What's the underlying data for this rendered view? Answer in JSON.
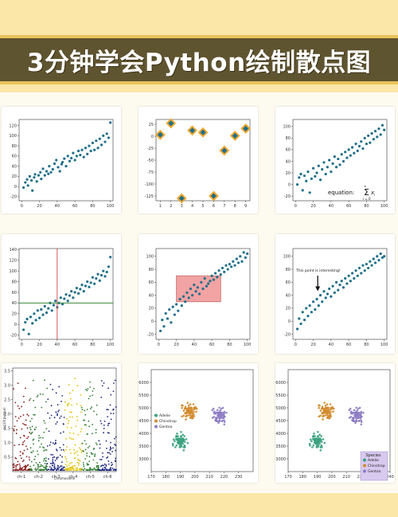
{
  "banner": {
    "title": "3分钟学会Python绘制散点图"
  },
  "chart_data": [
    {
      "type": "scatter",
      "title": "",
      "xlabel": "",
      "ylabel": "",
      "xlim": [
        -3,
        103
      ],
      "ylim": [
        -28,
        132
      ],
      "xticks": [
        "0",
        "20",
        "40",
        "60",
        "80",
        "100"
      ],
      "yticks": [
        "-20",
        "0",
        "20",
        "40",
        "60",
        "80",
        "100",
        "120"
      ],
      "color": "#1f6f8b",
      "x": [
        2,
        4,
        6,
        7,
        9,
        11,
        12,
        14,
        15,
        17,
        19,
        21,
        22,
        24,
        26,
        28,
        30,
        31,
        33,
        35,
        37,
        39,
        41,
        43,
        45,
        46,
        48,
        50,
        52,
        54,
        56,
        58,
        60,
        62,
        64,
        66,
        68,
        70,
        72,
        74,
        76,
        78,
        80,
        82,
        84,
        86,
        88,
        90,
        92,
        94,
        96,
        98,
        100
      ],
      "y": [
        -2,
        8,
        14,
        2,
        20,
        12,
        -8,
        18,
        24,
        10,
        22,
        28,
        15,
        35,
        22,
        30,
        25,
        40,
        28,
        34,
        45,
        52,
        38,
        30,
        44,
        48,
        55,
        40,
        60,
        50,
        56,
        66,
        52,
        60,
        70,
        62,
        72,
        58,
        76,
        64,
        80,
        70,
        86,
        72,
        90,
        76,
        94,
        82,
        100,
        88,
        104,
        96,
        126
      ]
    },
    {
      "type": "scatter",
      "title": "",
      "xlabel": "",
      "ylabel": "",
      "xlim": [
        0.6,
        9.4
      ],
      "ylim": [
        -135,
        35
      ],
      "xticks": [
        "1",
        "2",
        "3",
        "4",
        "5",
        "6",
        "7",
        "8",
        "9"
      ],
      "yticks": [
        "25",
        "0",
        "-25",
        "-50",
        "-75",
        "-100",
        "-125"
      ],
      "color": "#1f6f8b",
      "edge_color": "#f0a830",
      "marker": "diamond",
      "x": [
        1,
        2,
        3,
        4,
        5,
        6,
        7,
        8,
        9
      ],
      "y": [
        3,
        27,
        -130,
        12,
        8,
        -125,
        -30,
        1,
        16
      ]
    },
    {
      "type": "scatter",
      "title": "",
      "xlabel": "",
      "ylabel": "",
      "xlim": [
        -3,
        103
      ],
      "ylim": [
        -28,
        112
      ],
      "xticks": [
        "0",
        "20",
        "40",
        "60",
        "80",
        "100"
      ],
      "yticks": [
        "-20",
        "0",
        "20",
        "40",
        "60",
        "80",
        "100"
      ],
      "color": "#1f6f8b",
      "annotation": "equation:",
      "x": [
        2,
        4,
        6,
        8,
        10,
        12,
        14,
        16,
        18,
        20,
        22,
        24,
        26,
        28,
        30,
        32,
        34,
        36,
        38,
        40,
        42,
        44,
        46,
        48,
        50,
        52,
        54,
        56,
        58,
        60,
        62,
        64,
        66,
        68,
        70,
        72,
        74,
        76,
        78,
        80,
        82,
        84,
        86,
        88,
        90,
        92,
        94,
        96,
        98,
        100
      ],
      "y": [
        0,
        12,
        18,
        -10,
        15,
        6,
        22,
        -14,
        10,
        28,
        14,
        20,
        32,
        8,
        26,
        38,
        18,
        30,
        42,
        22,
        36,
        48,
        30,
        44,
        34,
        52,
        40,
        56,
        46,
        60,
        50,
        64,
        54,
        70,
        58,
        66,
        74,
        62,
        80,
        70,
        84,
        72,
        88,
        78,
        92,
        82,
        96,
        86,
        102,
        94
      ]
    },
    {
      "type": "scatter",
      "title": "",
      "xlabel": "",
      "ylabel": "",
      "xlim": [
        -3,
        103
      ],
      "ylim": [
        -28,
        142
      ],
      "xticks": [
        "0",
        "20",
        "40",
        "60",
        "80",
        "100"
      ],
      "yticks": [
        "-20",
        "0",
        "20",
        "40",
        "60",
        "80",
        "100",
        "120",
        "140"
      ],
      "color": "#1f6f8b",
      "vline": {
        "x": 40,
        "color": "#d9534f"
      },
      "hline": {
        "y": 40,
        "color": "#3a8a3a"
      },
      "x": [
        2,
        4,
        6,
        8,
        10,
        12,
        14,
        16,
        18,
        20,
        22,
        24,
        26,
        28,
        30,
        32,
        34,
        36,
        38,
        40,
        42,
        44,
        46,
        48,
        50,
        52,
        54,
        56,
        58,
        60,
        62,
        64,
        66,
        68,
        70,
        72,
        74,
        76,
        78,
        80,
        82,
        84,
        86,
        88,
        90,
        92,
        94,
        96,
        98,
        100
      ],
      "y": [
        -10,
        4,
        10,
        -18,
        14,
        2,
        20,
        8,
        26,
        12,
        28,
        18,
        34,
        22,
        30,
        40,
        26,
        36,
        44,
        32,
        40,
        50,
        38,
        48,
        56,
        44,
        54,
        62,
        50,
        60,
        68,
        58,
        66,
        74,
        62,
        72,
        80,
        70,
        78,
        88,
        76,
        86,
        94,
        82,
        92,
        100,
        90,
        98,
        108,
        126
      ]
    },
    {
      "type": "scatter",
      "title": "",
      "xlabel": "",
      "ylabel": "",
      "xlim": [
        -3,
        103
      ],
      "ylim": [
        -28,
        112
      ],
      "xticks": [
        "0",
        "20",
        "40",
        "60",
        "80",
        "100"
      ],
      "yticks": [
        "-20",
        "0",
        "20",
        "40",
        "60",
        "80",
        "100"
      ],
      "color": "#1f6f8b",
      "highlight": {
        "x": [
          20,
          70
        ],
        "y": [
          30,
          70
        ],
        "color": "#f2a3a3"
      },
      "x": [
        2,
        4,
        6,
        8,
        10,
        12,
        14,
        16,
        18,
        20,
        22,
        24,
        26,
        28,
        30,
        32,
        34,
        36,
        38,
        40,
        42,
        44,
        46,
        48,
        50,
        52,
        54,
        56,
        58,
        60,
        62,
        64,
        66,
        68,
        70,
        72,
        74,
        76,
        78,
        80,
        82,
        84,
        86,
        88,
        90,
        92,
        94,
        96,
        98,
        100
      ],
      "y": [
        -15,
        2,
        -8,
        12,
        4,
        18,
        -2,
        22,
        10,
        26,
        16,
        34,
        24,
        38,
        30,
        44,
        36,
        50,
        40,
        56,
        46,
        52,
        42,
        60,
        50,
        66,
        54,
        58,
        62,
        70,
        64,
        74,
        68,
        78,
        72,
        82,
        76,
        86,
        80,
        88,
        84,
        92,
        86,
        96,
        90,
        100,
        92,
        106,
        98,
        104
      ]
    },
    {
      "type": "scatter",
      "title": "",
      "xlabel": "",
      "ylabel": "",
      "xlim": [
        -3,
        103
      ],
      "ylim": [
        -28,
        112
      ],
      "xticks": [
        "0",
        "20",
        "40",
        "60",
        "80",
        "100"
      ],
      "yticks": [
        "-20",
        "0",
        "20",
        "40",
        "60",
        "80",
        "100"
      ],
      "color": "#1f6f8b",
      "annotation": "This point is interesting!",
      "arrow": {
        "x": 25,
        "y": 45
      },
      "x": [
        2,
        4,
        6,
        8,
        10,
        12,
        14,
        16,
        18,
        20,
        22,
        24,
        26,
        28,
        30,
        32,
        34,
        36,
        38,
        40,
        42,
        44,
        46,
        48,
        50,
        52,
        54,
        56,
        58,
        60,
        62,
        64,
        66,
        68,
        70,
        72,
        74,
        76,
        78,
        80,
        82,
        84,
        86,
        88,
        90,
        92,
        94,
        96,
        98,
        100
      ],
      "y": [
        -12,
        4,
        -4,
        14,
        2,
        20,
        8,
        24,
        14,
        30,
        18,
        34,
        24,
        40,
        30,
        46,
        36,
        42,
        50,
        38,
        54,
        44,
        60,
        48,
        56,
        62,
        52,
        66,
        58,
        70,
        62,
        74,
        66,
        78,
        70,
        82,
        74,
        86,
        78,
        88,
        82,
        92,
        86,
        96,
        90,
        100,
        94,
        104,
        98,
        100
      ]
    },
    {
      "type": "scatter",
      "title": "",
      "xlabel": "Chromosome",
      "ylabel": "-log10(pvalue)",
      "xlim": [
        0,
        6
      ],
      "ylim": [
        0,
        3.6
      ],
      "xticks": [
        "ch-1",
        "ch-2",
        "ch-3",
        "ch-4",
        "ch-5",
        "ch-6"
      ],
      "yticks": [
        "0.5",
        "1.0",
        "1.5",
        "2.0",
        "2.5",
        "3.0",
        "3.5"
      ],
      "colors": [
        "#8b1a1a",
        "#2e7d32",
        "#1a237e",
        "#e0c000",
        "#2e7d32",
        "#1a237e"
      ]
    },
    {
      "type": "scatter",
      "title": "",
      "xlabel": "",
      "ylabel": "",
      "xlim": [
        170,
        240
      ],
      "ylim": [
        2500,
        6500
      ],
      "legend": {
        "entries": [
          "Adelie",
          "Chinstrap",
          "Gentoo"
        ],
        "position": "left"
      },
      "xticks": [
        "170",
        "180",
        "190",
        "200",
        "210",
        "220",
        "230"
      ],
      "yticks": [
        "3000",
        "3500",
        "4000",
        "4500",
        "5000",
        "5500",
        "6000"
      ],
      "series": [
        {
          "name": "Adelie",
          "color": "#3aa17e",
          "center": [
            190,
            3700
          ]
        },
        {
          "name": "Chinstrap",
          "color": "#d18a2a",
          "center": [
            196,
            4900
          ]
        },
        {
          "name": "Gentoo",
          "color": "#8e7cc3",
          "center": [
            217,
            4700
          ]
        }
      ]
    },
    {
      "type": "scatter",
      "title": "",
      "xlabel": "",
      "ylabel": "",
      "xlim": [
        170,
        240
      ],
      "ylim": [
        2500,
        6500
      ],
      "legend": {
        "title": "Species",
        "entries": [
          "Adelie",
          "Chinstrap",
          "Gentoo"
        ],
        "position": "bottom-right"
      },
      "xticks": [
        "170",
        "180",
        "190",
        "200",
        "210",
        "220",
        "230",
        "240"
      ],
      "yticks": [
        "3000",
        "3500",
        "4000",
        "4500",
        "5000",
        "5500",
        "6000"
      ],
      "series": [
        {
          "name": "Adelie",
          "color": "#3aa17e",
          "center": [
            190,
            3700
          ]
        },
        {
          "name": "Chinstrap",
          "color": "#d18a2a",
          "center": [
            196,
            4900
          ]
        },
        {
          "name": "Gentoo",
          "color": "#8e7cc3",
          "center": [
            217,
            4700
          ]
        }
      ]
    }
  ]
}
